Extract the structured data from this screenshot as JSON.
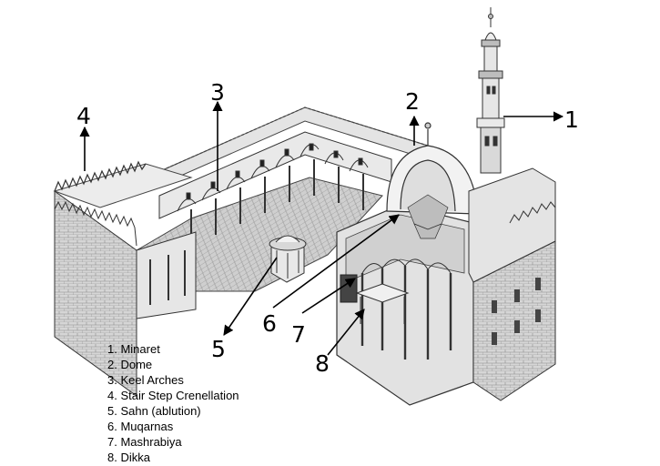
{
  "callouts": [
    {
      "number": "1",
      "name": "Minaret"
    },
    {
      "number": "2",
      "name": "Dome"
    },
    {
      "number": "3",
      "name": "Keel Arches"
    },
    {
      "number": "4",
      "name": "Stair Step Crenellation"
    },
    {
      "number": "5",
      "name": "Sahn (ablution)"
    },
    {
      "number": "6",
      "name": "Muqarnas"
    },
    {
      "number": "7",
      "name": "Mashrabiya"
    },
    {
      "number": "8",
      "name": "Dikka"
    }
  ],
  "legend": [
    "1. Minaret",
    "2. Dome",
    "3. Keel Arches",
    "4. Stair Step Crenellation",
    "5. Sahn (ablution)",
    "6. Muqarnas",
    "7. Mashrabiya",
    "8. Dikka"
  ]
}
